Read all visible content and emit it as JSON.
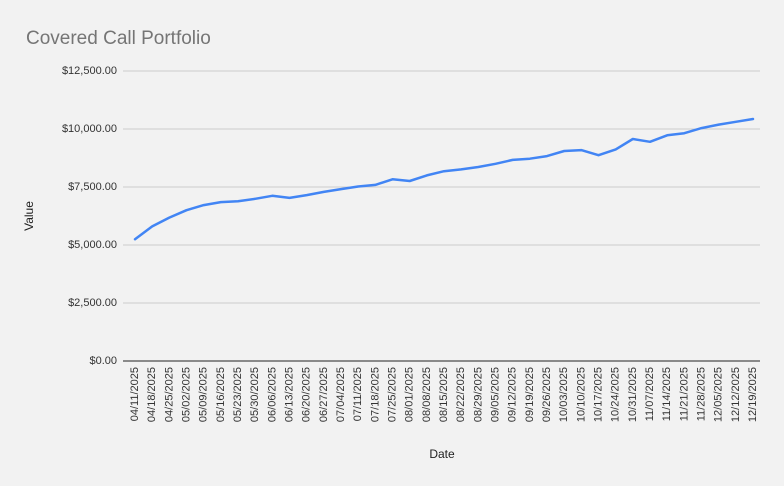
{
  "title": "Covered Call Portfolio",
  "colors": {
    "background": "#f2f2f2",
    "title": "#757575",
    "line": "#4285f4",
    "gridline": "#cccccc",
    "axis_baseline": "#212121",
    "tick_label": "#333333",
    "axis_title": "#1f1f1f"
  },
  "chart_data": {
    "type": "line",
    "title": "Covered Call Portfolio",
    "xlabel": "Date",
    "ylabel": "Value",
    "ylim": [
      0,
      12500
    ],
    "grid": true,
    "legend": "none",
    "yticks": [
      {
        "value": 0,
        "label": "$0.00"
      },
      {
        "value": 2500,
        "label": "$2,500.00"
      },
      {
        "value": 5000,
        "label": "$5,000.00"
      },
      {
        "value": 7500,
        "label": "$7,500.00"
      },
      {
        "value": 10000,
        "label": "$10,000.00"
      },
      {
        "value": 12500,
        "label": "$12,500.00"
      }
    ],
    "categories": [
      "04/11/2025",
      "04/18/2025",
      "04/25/2025",
      "05/02/2025",
      "05/09/2025",
      "05/16/2025",
      "05/23/2025",
      "05/30/2025",
      "06/06/2025",
      "06/13/2025",
      "06/20/2025",
      "06/27/2025",
      "07/04/2025",
      "07/11/2025",
      "07/18/2025",
      "07/25/2025",
      "08/01/2025",
      "08/08/2025",
      "08/15/2025",
      "08/22/2025",
      "08/29/2025",
      "09/05/2025",
      "09/12/2025",
      "09/19/2025",
      "09/26/2025",
      "10/03/2025",
      "10/10/2025",
      "10/17/2025",
      "10/24/2025",
      "10/31/2025",
      "11/07/2025",
      "11/14/2025",
      "11/21/2025",
      "11/28/2025",
      "12/05/2025",
      "12/12/2025",
      "12/19/2025"
    ],
    "series": [
      {
        "name": "Value",
        "color": "#4285f4",
        "values": [
          5250,
          5800,
          6180,
          6500,
          6720,
          6850,
          6890,
          6990,
          7120,
          7030,
          7150,
          7290,
          7410,
          7520,
          7590,
          7830,
          7760,
          8000,
          8180,
          8260,
          8360,
          8500,
          8670,
          8720,
          8830,
          9050,
          9090,
          8870,
          9120,
          9570,
          9450,
          9730,
          9820,
          10040,
          10190,
          10310,
          10430
        ]
      }
    ]
  }
}
